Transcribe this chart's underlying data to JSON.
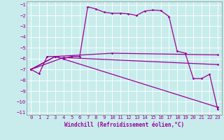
{
  "xlabel": "Windchill (Refroidissement éolien,°C)",
  "background_color": "#c8ecec",
  "line_color": "#990099",
  "grid_color": "#ffffff",
  "xlim": [
    -0.5,
    23.5
  ],
  "ylim": [
    -11.2,
    -0.7
  ],
  "xticks": [
    0,
    1,
    2,
    3,
    4,
    5,
    6,
    7,
    8,
    9,
    10,
    11,
    12,
    13,
    14,
    15,
    16,
    17,
    18,
    19,
    20,
    21,
    22,
    23
  ],
  "yticks": [
    -1,
    -2,
    -3,
    -4,
    -5,
    -6,
    -7,
    -8,
    -9,
    -10,
    -11
  ],
  "series1": [
    [
      0,
      -7.0
    ],
    [
      1,
      -7.4
    ],
    [
      2,
      -5.8
    ],
    [
      3,
      -5.8
    ],
    [
      4,
      -6.0
    ],
    [
      5,
      -5.8
    ],
    [
      6,
      -5.8
    ],
    [
      7,
      -1.2
    ],
    [
      8,
      -1.4
    ],
    [
      9,
      -1.7
    ],
    [
      10,
      -1.8
    ],
    [
      11,
      -1.8
    ],
    [
      12,
      -1.85
    ],
    [
      13,
      -2.0
    ],
    [
      14,
      -1.6
    ],
    [
      15,
      -1.5
    ],
    [
      16,
      -1.55
    ],
    [
      17,
      -2.1
    ],
    [
      18,
      -5.3
    ],
    [
      19,
      -5.5
    ],
    [
      20,
      -7.85
    ],
    [
      21,
      -7.85
    ],
    [
      22,
      -7.45
    ],
    [
      23,
      -10.7
    ]
  ],
  "series2": [
    [
      0,
      -7.0
    ],
    [
      3,
      -5.8
    ],
    [
      23,
      -10.5
    ]
  ],
  "series3": [
    [
      0,
      -7.0
    ],
    [
      3,
      -5.8
    ],
    [
      10,
      -5.5
    ],
    [
      23,
      -5.65
    ]
  ],
  "series4": [
    [
      0,
      -7.0
    ],
    [
      4,
      -5.9
    ],
    [
      23,
      -6.55
    ]
  ]
}
